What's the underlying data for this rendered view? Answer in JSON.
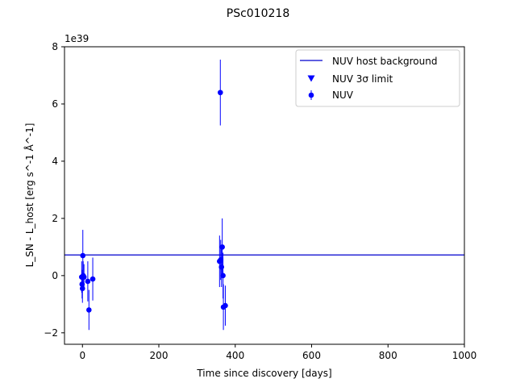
{
  "chart_data": {
    "type": "scatter",
    "title": "PSc010218",
    "xlabel": "Time since discovery [days]",
    "ylabel": "L_SN - L_host [erg s^-1 Å^-1]",
    "offset_label": "1e39",
    "y_scale": 1e+39,
    "xlim": [
      -47,
      1000
    ],
    "ylim": [
      -2.4,
      8.0
    ],
    "xticks": [
      0,
      200,
      400,
      600,
      800,
      1000
    ],
    "yticks": [
      -2,
      0,
      2,
      4,
      6,
      8
    ],
    "grid": false,
    "legend_position": "upper right",
    "colors": {
      "nuv": "#0000ff",
      "background_line": "#2a2ad6"
    },
    "host_background": {
      "name": "NUV host background",
      "y": 0.72
    },
    "upper_limits": {
      "name": "NUV 3σ limit",
      "points": []
    },
    "series": [
      {
        "name": "NUV",
        "points": [
          {
            "x": -2,
            "y": -0.05,
            "err": 0.55
          },
          {
            "x": -1,
            "y": -0.3,
            "err": 0.5
          },
          {
            "x": 0,
            "y": -0.45,
            "err": 0.5
          },
          {
            "x": 1,
            "y": 0.7,
            "err": 0.9
          },
          {
            "x": 2,
            "y": 0.0,
            "err": 0.5
          },
          {
            "x": 4,
            "y": -0.05,
            "err": 0.45
          },
          {
            "x": 14,
            "y": -0.2,
            "err": 0.7
          },
          {
            "x": 17,
            "y": -1.2,
            "err": 0.7
          },
          {
            "x": 27,
            "y": -0.12,
            "err": 0.75
          },
          {
            "x": 359,
            "y": 0.5,
            "err": 0.9
          },
          {
            "x": 361,
            "y": 6.4,
            "err": 1.15
          },
          {
            "x": 362,
            "y": 0.55,
            "err": 0.7
          },
          {
            "x": 364,
            "y": 0.3,
            "err": 0.7
          },
          {
            "x": 366,
            "y": 1.0,
            "err": 1.0
          },
          {
            "x": 368,
            "y": 0.0,
            "err": 0.8
          },
          {
            "x": 369,
            "y": -1.1,
            "err": 0.8
          },
          {
            "x": 374,
            "y": -1.05,
            "err": 0.7
          }
        ]
      }
    ]
  }
}
